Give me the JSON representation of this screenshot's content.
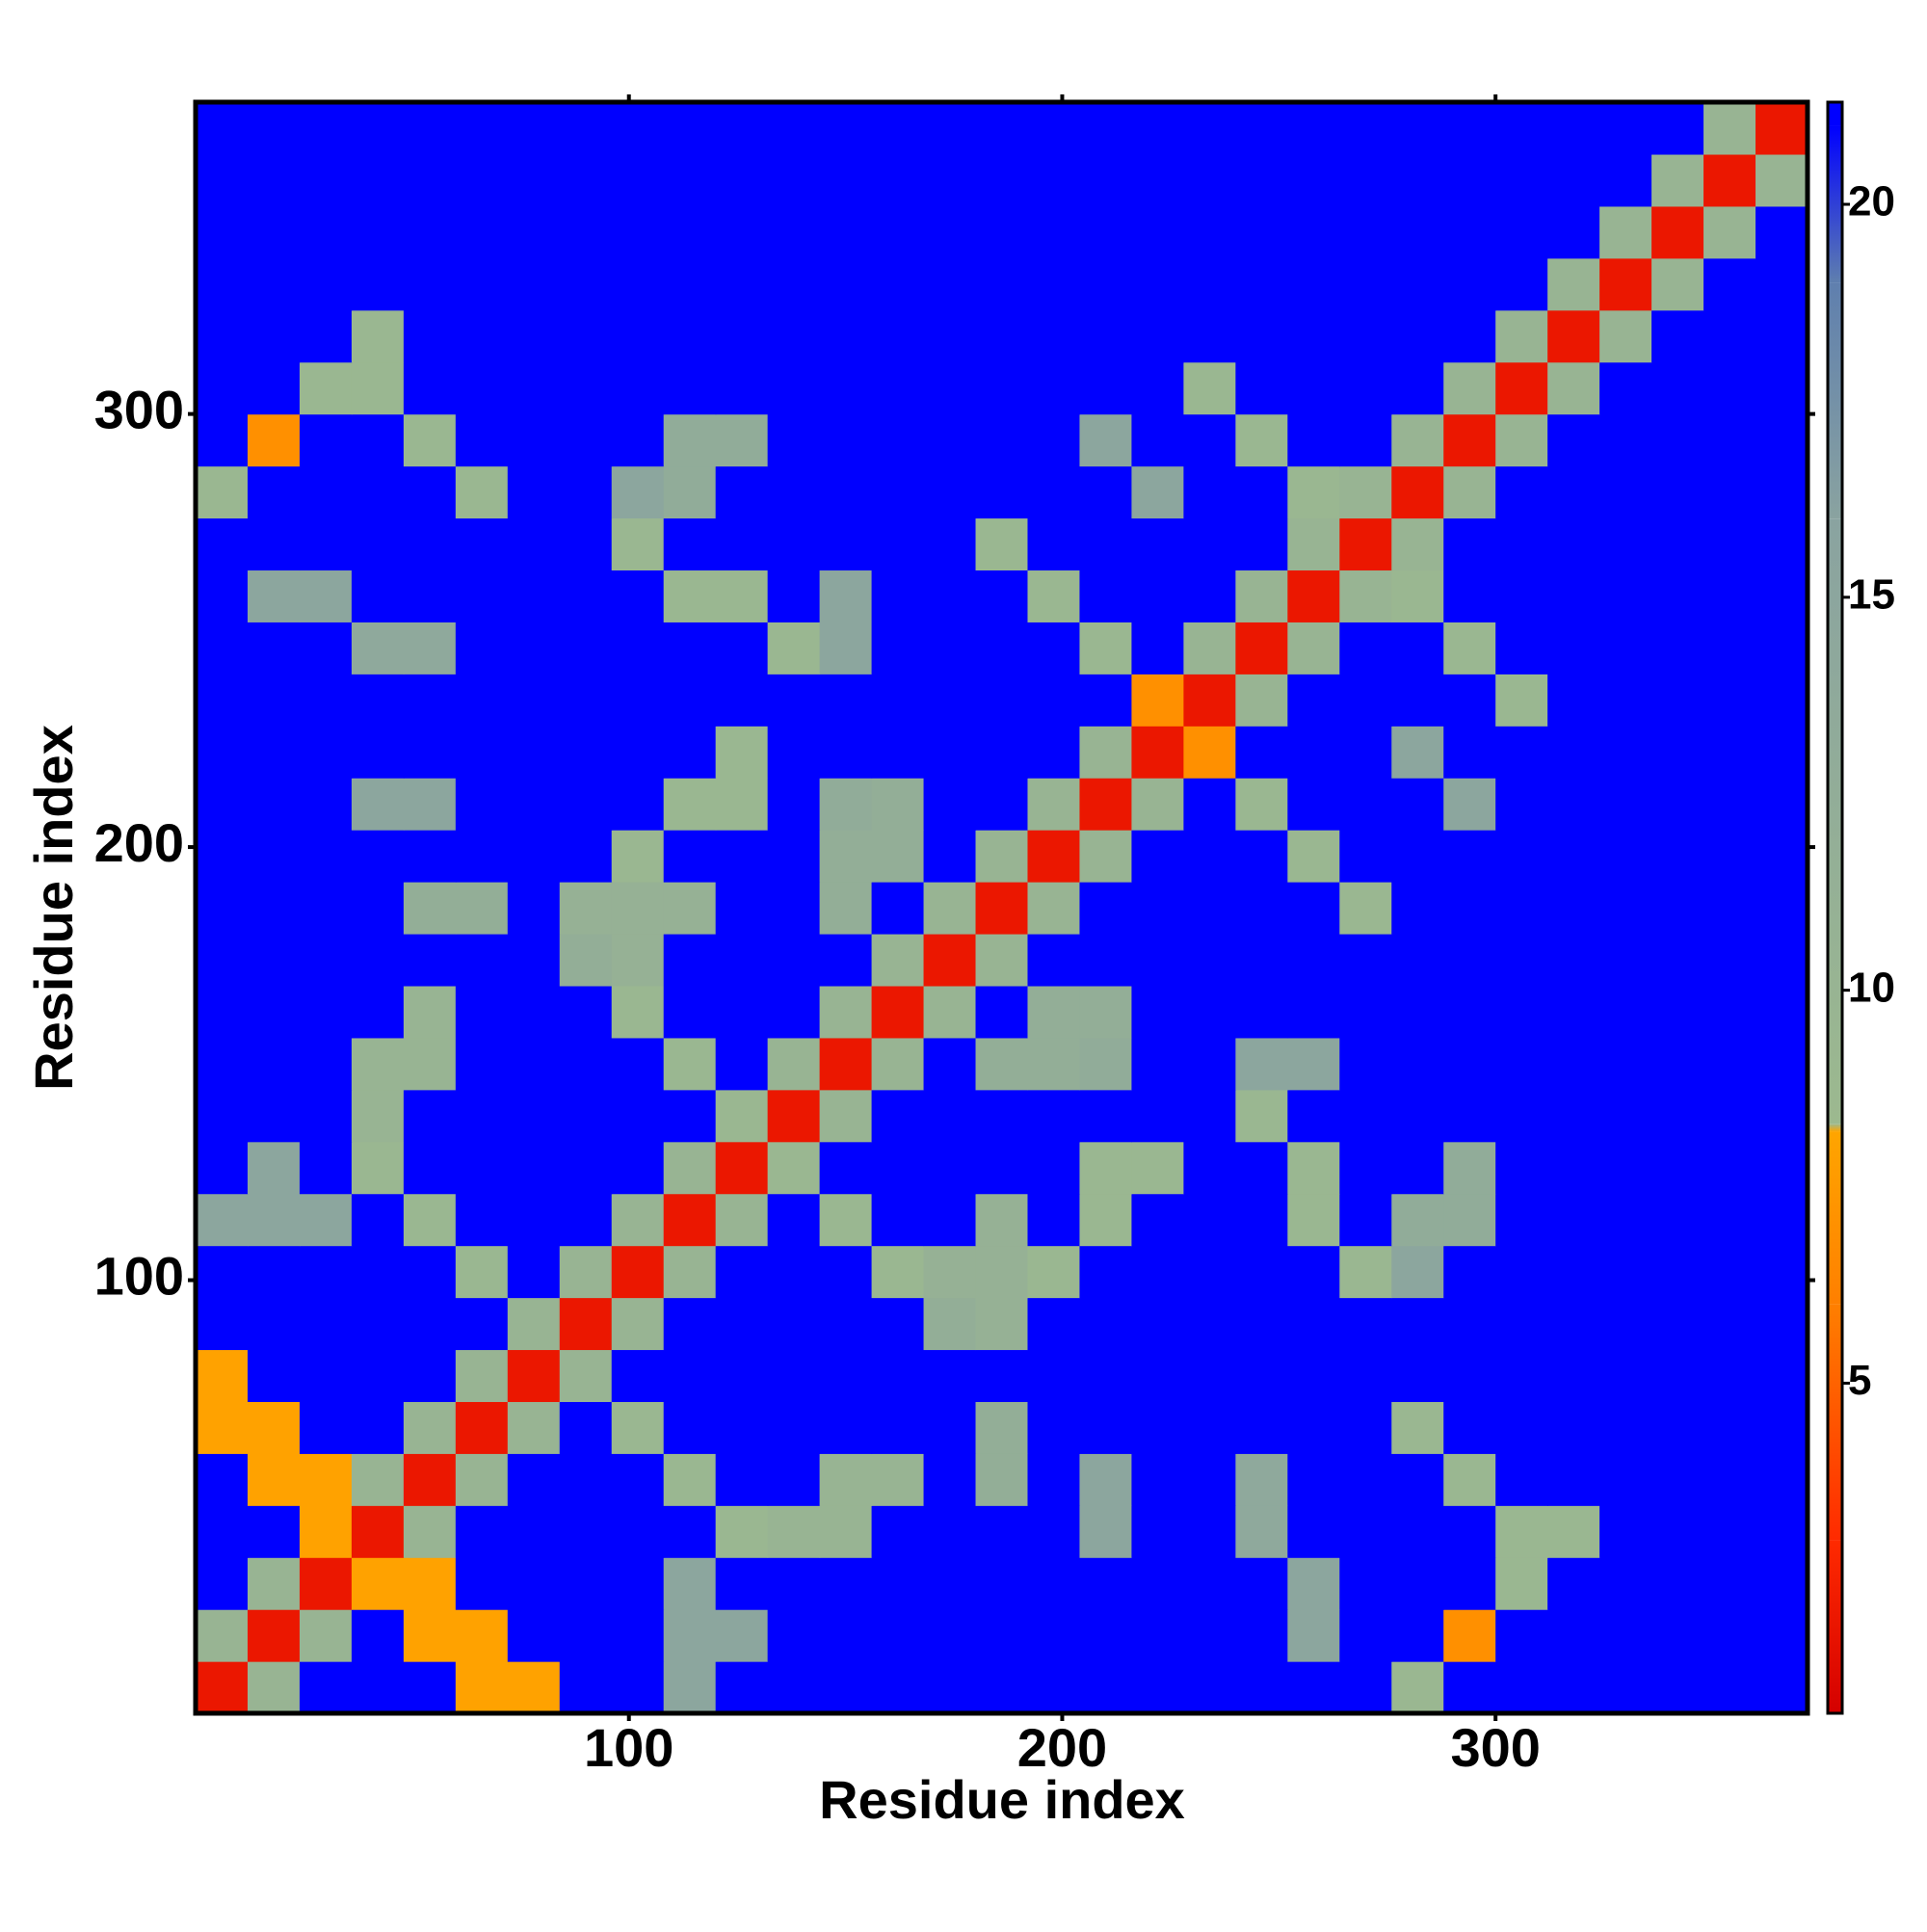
{
  "chart_data": {
    "type": "heatmap",
    "x_label": "Residue index",
    "y_label": "Residue index",
    "xlim": [
      0,
      372
    ],
    "ylim": [
      0,
      372
    ],
    "xticks": [
      100,
      200,
      300
    ],
    "yticks": [
      100,
      200,
      300
    ],
    "xbins": [
      0,
      12,
      24,
      36,
      48,
      60,
      72,
      84,
      96,
      108,
      120,
      132,
      144,
      156,
      168,
      180,
      192,
      204,
      216,
      228,
      240,
      252,
      264,
      276,
      288,
      300,
      312,
      324,
      336,
      348,
      360,
      372
    ],
    "ybins": [
      0,
      12,
      24,
      36,
      48,
      60,
      72,
      84,
      96,
      108,
      120,
      132,
      144,
      156,
      168,
      180,
      192,
      204,
      216,
      228,
      240,
      252,
      264,
      276,
      288,
      300,
      312,
      324,
      336,
      348,
      360,
      372
    ],
    "zlim": [
      0.8,
      21.3
    ],
    "zticks": [
      5,
      10,
      15,
      20
    ],
    "colorscale": [
      {
        "value": 0.8,
        "color": "#d40000"
      },
      {
        "value": 3,
        "color": "#ff2a00"
      },
      {
        "value": 6,
        "color": "#ff7f00"
      },
      {
        "value": 8.2,
        "color": "#ffa500"
      },
      {
        "value": 8.3,
        "color": "#9cb98f"
      },
      {
        "value": 16,
        "color": "#8aa3a0"
      },
      {
        "value": 19,
        "color": "#5f7fae"
      },
      {
        "value": 21,
        "color": "#0000ff"
      },
      {
        "value": 21.3,
        "color": "#0000ff"
      }
    ],
    "z": [
      [
        2,
        10,
        21,
        21,
        21,
        8,
        8,
        21,
        21,
        15,
        21,
        21,
        21,
        21,
        21,
        21,
        21,
        21,
        21,
        21,
        21,
        21,
        21,
        9,
        21,
        21,
        21,
        21,
        21,
        21,
        21
      ],
      [
        10,
        2,
        10,
        21,
        8,
        8,
        21,
        21,
        21,
        15,
        15,
        21,
        21,
        21,
        21,
        21,
        21,
        21,
        21,
        21,
        21,
        15,
        21,
        21,
        7,
        21,
        21,
        21,
        21,
        21,
        21
      ],
      [
        21,
        10,
        2,
        8,
        8,
        21,
        21,
        21,
        21,
        15,
        21,
        21,
        21,
        21,
        21,
        21,
        21,
        21,
        21,
        21,
        21,
        15,
        21,
        21,
        21,
        9,
        21,
        21,
        21,
        21,
        21
      ],
      [
        21,
        21,
        8,
        2,
        10,
        21,
        21,
        21,
        21,
        21,
        9,
        10,
        10,
        21,
        21,
        21,
        21,
        15,
        21,
        21,
        14,
        21,
        21,
        21,
        21,
        9,
        9,
        21,
        21,
        21,
        21
      ],
      [
        21,
        8,
        8,
        10,
        2,
        10,
        21,
        21,
        21,
        9,
        21,
        21,
        10,
        10,
        21,
        12,
        21,
        15,
        21,
        21,
        14,
        21,
        21,
        21,
        9,
        21,
        21,
        21,
        21,
        21,
        21
      ],
      [
        8,
        8,
        21,
        21,
        10,
        2,
        10,
        21,
        9,
        21,
        21,
        21,
        21,
        21,
        21,
        12,
        21,
        21,
        21,
        21,
        21,
        21,
        21,
        9,
        21,
        21,
        21,
        21,
        21,
        21,
        21
      ],
      [
        8,
        21,
        21,
        21,
        21,
        10,
        2,
        10,
        21,
        21,
        21,
        21,
        21,
        21,
        21,
        21,
        21,
        21,
        21,
        21,
        21,
        21,
        21,
        21,
        21,
        21,
        21,
        21,
        21,
        21,
        21
      ],
      [
        21,
        21,
        21,
        21,
        21,
        21,
        10,
        2,
        10,
        21,
        21,
        21,
        21,
        21,
        12,
        11,
        21,
        21,
        21,
        21,
        21,
        21,
        21,
        21,
        21,
        21,
        21,
        21,
        21,
        21,
        21
      ],
      [
        21,
        21,
        21,
        21,
        21,
        9,
        21,
        10,
        2,
        10,
        21,
        21,
        21,
        9,
        11,
        11,
        9,
        21,
        21,
        21,
        21,
        21,
        9,
        15,
        21,
        21,
        21,
        21,
        21,
        21,
        21
      ],
      [
        15,
        15,
        15,
        21,
        9,
        21,
        21,
        21,
        10,
        2,
        10,
        21,
        9,
        21,
        21,
        11,
        21,
        9,
        21,
        21,
        21,
        9,
        21,
        13,
        13,
        21,
        21,
        21,
        21,
        21,
        21
      ],
      [
        21,
        15,
        21,
        9,
        21,
        21,
        21,
        21,
        21,
        10,
        2,
        9,
        21,
        21,
        21,
        21,
        21,
        9,
        9,
        21,
        21,
        9,
        21,
        21,
        13,
        21,
        21,
        21,
        21,
        21,
        21
      ],
      [
        21,
        21,
        21,
        10,
        21,
        21,
        21,
        21,
        21,
        21,
        9,
        2,
        10,
        21,
        21,
        21,
        21,
        21,
        21,
        21,
        9,
        21,
        21,
        21,
        21,
        21,
        21,
        21,
        21,
        21,
        21
      ],
      [
        21,
        21,
        21,
        10,
        10,
        21,
        21,
        21,
        21,
        9,
        21,
        10,
        2,
        10,
        21,
        12,
        12,
        13,
        21,
        21,
        15,
        15,
        21,
        21,
        21,
        21,
        21,
        21,
        21,
        21,
        21
      ],
      [
        21,
        21,
        21,
        21,
        10,
        21,
        21,
        21,
        9,
        21,
        21,
        21,
        10,
        2,
        10,
        21,
        12,
        12,
        21,
        21,
        21,
        21,
        21,
        21,
        21,
        21,
        21,
        21,
        21,
        21,
        21
      ],
      [
        21,
        21,
        21,
        21,
        21,
        21,
        21,
        12,
        11,
        21,
        21,
        21,
        21,
        10,
        2,
        10,
        21,
        21,
        21,
        21,
        21,
        21,
        21,
        21,
        21,
        21,
        21,
        21,
        21,
        21,
        21
      ],
      [
        21,
        21,
        21,
        21,
        12,
        12,
        21,
        11,
        11,
        11,
        21,
        21,
        12,
        21,
        10,
        2,
        10,
        21,
        21,
        21,
        21,
        21,
        9,
        21,
        21,
        21,
        21,
        21,
        21,
        21,
        21
      ],
      [
        21,
        21,
        21,
        21,
        21,
        21,
        21,
        21,
        9,
        21,
        21,
        21,
        12,
        12,
        21,
        10,
        2,
        10,
        21,
        21,
        21,
        9,
        21,
        21,
        21,
        21,
        21,
        21,
        21,
        21,
        21
      ],
      [
        21,
        21,
        21,
        15,
        15,
        21,
        21,
        21,
        21,
        9,
        9,
        21,
        13,
        12,
        21,
        21,
        10,
        2,
        10,
        21,
        9,
        21,
        21,
        21,
        15,
        21,
        21,
        21,
        21,
        21,
        21
      ],
      [
        21,
        21,
        21,
        21,
        21,
        21,
        21,
        21,
        21,
        21,
        9,
        21,
        21,
        21,
        21,
        21,
        21,
        10,
        2,
        7,
        21,
        21,
        21,
        15,
        21,
        21,
        21,
        21,
        21,
        21,
        21
      ],
      [
        21,
        21,
        21,
        21,
        21,
        21,
        21,
        21,
        21,
        21,
        21,
        21,
        21,
        21,
        21,
        21,
        21,
        21,
        7,
        2,
        10,
        21,
        21,
        21,
        21,
        9,
        21,
        21,
        21,
        21,
        21
      ],
      [
        21,
        21,
        21,
        14,
        14,
        21,
        21,
        21,
        21,
        21,
        21,
        9,
        15,
        21,
        21,
        21,
        21,
        9,
        21,
        10,
        2,
        10,
        21,
        21,
        9,
        21,
        21,
        21,
        21,
        21,
        21
      ],
      [
        21,
        15,
        15,
        21,
        21,
        21,
        21,
        21,
        21,
        9,
        9,
        21,
        15,
        21,
        21,
        21,
        9,
        21,
        21,
        21,
        10,
        2,
        10,
        9,
        21,
        21,
        21,
        21,
        21,
        21,
        21
      ],
      [
        21,
        21,
        21,
        21,
        21,
        21,
        21,
        21,
        9,
        21,
        21,
        21,
        21,
        21,
        21,
        9,
        21,
        21,
        21,
        21,
        21,
        10,
        2,
        10,
        21,
        21,
        21,
        21,
        21,
        21,
        21
      ],
      [
        9,
        21,
        21,
        21,
        21,
        9,
        21,
        21,
        15,
        13,
        21,
        21,
        21,
        21,
        21,
        21,
        21,
        21,
        15,
        21,
        21,
        9,
        10,
        2,
        10,
        21,
        21,
        21,
        21,
        21,
        21
      ],
      [
        21,
        7,
        21,
        21,
        9,
        21,
        21,
        21,
        21,
        13,
        13,
        21,
        21,
        21,
        21,
        21,
        21,
        15,
        21,
        21,
        9,
        21,
        21,
        10,
        2,
        10,
        21,
        21,
        21,
        21,
        21
      ],
      [
        21,
        21,
        9,
        9,
        21,
        21,
        21,
        21,
        21,
        21,
        21,
        21,
        21,
        21,
        21,
        21,
        21,
        21,
        21,
        9,
        21,
        21,
        21,
        21,
        10,
        2,
        10,
        21,
        21,
        21,
        21
      ],
      [
        21,
        21,
        21,
        9,
        21,
        21,
        21,
        21,
        21,
        21,
        21,
        21,
        21,
        21,
        21,
        21,
        21,
        21,
        21,
        21,
        21,
        21,
        21,
        21,
        21,
        10,
        2,
        10,
        21,
        21,
        21
      ],
      [
        21,
        21,
        21,
        21,
        21,
        21,
        21,
        21,
        21,
        21,
        21,
        21,
        21,
        21,
        21,
        21,
        21,
        21,
        21,
        21,
        21,
        21,
        21,
        21,
        21,
        21,
        10,
        2,
        10,
        21,
        21
      ],
      [
        21,
        21,
        21,
        21,
        21,
        21,
        21,
        21,
        21,
        21,
        21,
        21,
        21,
        21,
        21,
        21,
        21,
        21,
        21,
        21,
        21,
        21,
        21,
        21,
        21,
        21,
        21,
        10,
        2,
        10,
        21
      ],
      [
        21,
        21,
        21,
        21,
        21,
        21,
        21,
        21,
        21,
        21,
        21,
        21,
        21,
        21,
        21,
        21,
        21,
        21,
        21,
        21,
        21,
        21,
        21,
        21,
        21,
        21,
        21,
        21,
        10,
        2,
        10
      ],
      [
        21,
        21,
        21,
        21,
        21,
        21,
        21,
        21,
        21,
        21,
        21,
        21,
        21,
        21,
        21,
        21,
        21,
        21,
        21,
        21,
        21,
        21,
        21,
        21,
        21,
        21,
        21,
        21,
        21,
        10,
        2
      ]
    ]
  }
}
